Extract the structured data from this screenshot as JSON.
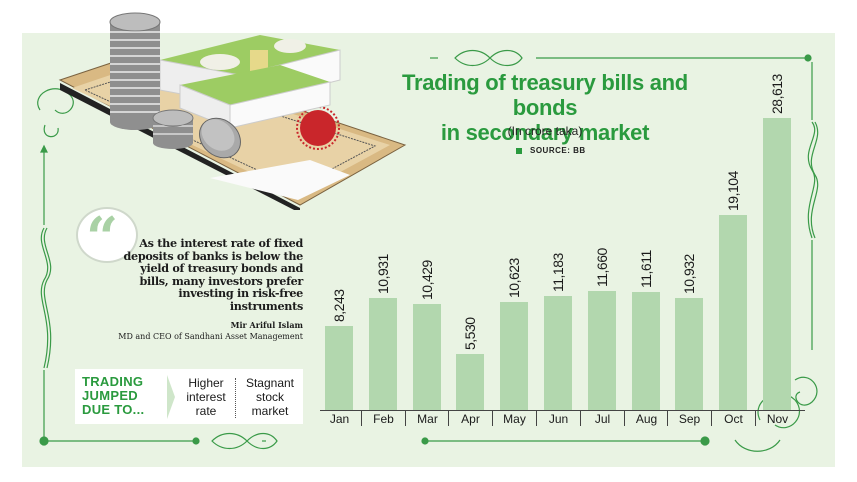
{
  "chart_data": {
    "type": "bar",
    "title": "Trading of treasury bills and bonds in secondary market",
    "subtitle": "(In crore taka)",
    "source": "SOURCE: BB",
    "xlabel": "",
    "ylabel": "",
    "categories": [
      "Jan",
      "Feb",
      "Mar",
      "Apr",
      "May",
      "Jun",
      "Jul",
      "Aug",
      "Sep",
      "Oct",
      "Nov"
    ],
    "values": [
      8243,
      10931,
      10429,
      5530,
      10623,
      11183,
      11660,
      11611,
      10932,
      19104,
      28613
    ],
    "value_labels": [
      "8,243",
      "10,931",
      "10,429",
      "5,530",
      "10,623",
      "11,183",
      "11,660",
      "11,611",
      "10,932",
      "19,104",
      "28,613"
    ],
    "ylim": [
      0,
      28613
    ],
    "grid": false,
    "legend": "none",
    "bar_color": "#b2d7ae"
  },
  "header": {
    "title_line1": "Trading of treasury bills and bonds",
    "title_line2": "in secondary market",
    "subtitle": "(In crore taka)",
    "source": "SOURCE: BB"
  },
  "quote": {
    "mark": "“",
    "text": "As the interest rate of fixed deposits of banks is below the yield of treasury bonds and bills, many investors prefer investing in risk-free instruments",
    "author": "Mir Ariful Islam",
    "role": "MD and CEO of Sandhani Asset Management"
  },
  "reasons": {
    "heading_lines": [
      "TRADING",
      "JUMPED",
      "DUE TO..."
    ],
    "items": [
      {
        "lines": [
          "Higher",
          "interest",
          "rate"
        ]
      },
      {
        "lines": [
          "Stagnant",
          "stock",
          "market"
        ]
      }
    ]
  },
  "colors": {
    "accent": "#2a9a3e",
    "panel_bg": "#e9f3e3",
    "bar": "#b2d7ae"
  }
}
